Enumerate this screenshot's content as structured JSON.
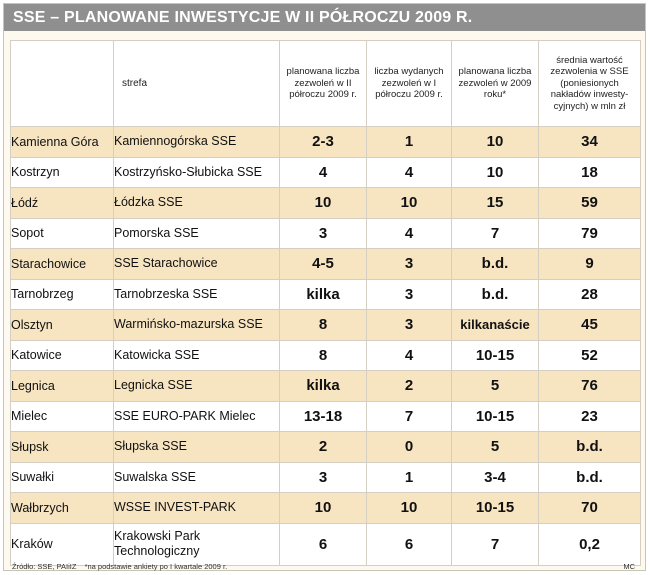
{
  "title": "SSE – PLANOWANE INWESTYCJE W II PÓŁROCZU 2009 R.",
  "headers": {
    "city": "",
    "zone": "strefa",
    "planned_h2": "planowana liczba zezwoleń w II półroczu 2009 r.",
    "issued_h1": "liczba wydanych zezwoleń w I półroczu 2009 r.",
    "planned_2009": "planowana liczba zezwoleń w 2009 roku*",
    "avg_value": "średnia wartość zezwolenia w SSE (poniesionych nakładów inwesty-cyjnych) w mln zł"
  },
  "rows": [
    {
      "city": "Kamienna Góra",
      "zone": "Kamiennogórska SSE",
      "planned_h2": "2-3",
      "issued_h1": "1",
      "planned_2009": "10",
      "avg_value": "34"
    },
    {
      "city": "Kostrzyn",
      "zone": "Kostrzyńsko-Słubicka SSE",
      "planned_h2": "4",
      "issued_h1": "4",
      "planned_2009": "10",
      "avg_value": "18"
    },
    {
      "city": "Łódź",
      "zone": "Łódzka SSE",
      "planned_h2": "10",
      "issued_h1": "10",
      "planned_2009": "15",
      "avg_value": "59"
    },
    {
      "city": "Sopot",
      "zone": "Pomorska SSE",
      "planned_h2": "3",
      "issued_h1": "4",
      "planned_2009": "7",
      "avg_value": "79"
    },
    {
      "city": "Starachowice",
      "zone": "SSE Starachowice",
      "planned_h2": "4-5",
      "issued_h1": "3",
      "planned_2009": "b.d.",
      "avg_value": "9"
    },
    {
      "city": "Tarnobrzeg",
      "zone": "Tarnobrzeska SSE",
      "planned_h2": "kilka",
      "issued_h1": "3",
      "planned_2009": "b.d.",
      "avg_value": "28"
    },
    {
      "city": "Olsztyn",
      "zone": "Warmińsko-mazurska SSE",
      "planned_h2": "8",
      "issued_h1": "3",
      "planned_2009": "kilkanaście",
      "avg_value": "45"
    },
    {
      "city": "Katowice",
      "zone": "Katowicka SSE",
      "planned_h2": "8",
      "issued_h1": "4",
      "planned_2009": "10-15",
      "avg_value": "52"
    },
    {
      "city": "Legnica",
      "zone": "Legnicka SSE",
      "planned_h2": "kilka",
      "issued_h1": "2",
      "planned_2009": "5",
      "avg_value": "76"
    },
    {
      "city": "Mielec",
      "zone": "SSE EURO-PARK Mielec",
      "planned_h2": "13-18",
      "issued_h1": "7",
      "planned_2009": "10-15",
      "avg_value": "23"
    },
    {
      "city": "Słupsk",
      "zone": "Słupska SSE",
      "planned_h2": "2",
      "issued_h1": "0",
      "planned_2009": "5",
      "avg_value": "b.d."
    },
    {
      "city": "Suwałki",
      "zone": "Suwalska SSE",
      "planned_h2": "3",
      "issued_h1": "1",
      "planned_2009": "3-4",
      "avg_value": "b.d."
    },
    {
      "city": "Wałbrzych",
      "zone": "WSSE INVEST-PARK",
      "planned_h2": "10",
      "issued_h1": "10",
      "planned_2009": "10-15",
      "avg_value": "70"
    },
    {
      "city": "Kraków",
      "zone": "Krakowski Park Technologiczny",
      "planned_h2": "6",
      "issued_h1": "6",
      "planned_2009": "7",
      "avg_value": "0,2"
    }
  ],
  "footer": {
    "source": "Źródło: SSE, PAIiIZ",
    "note": "*na podstawie ankiety po I kwartale 2009 r.",
    "credit": "MC"
  },
  "colors": {
    "title_bar": "#8f8f8f",
    "row_highlight": "#f7e4c1",
    "background": "#fdf9ee"
  }
}
